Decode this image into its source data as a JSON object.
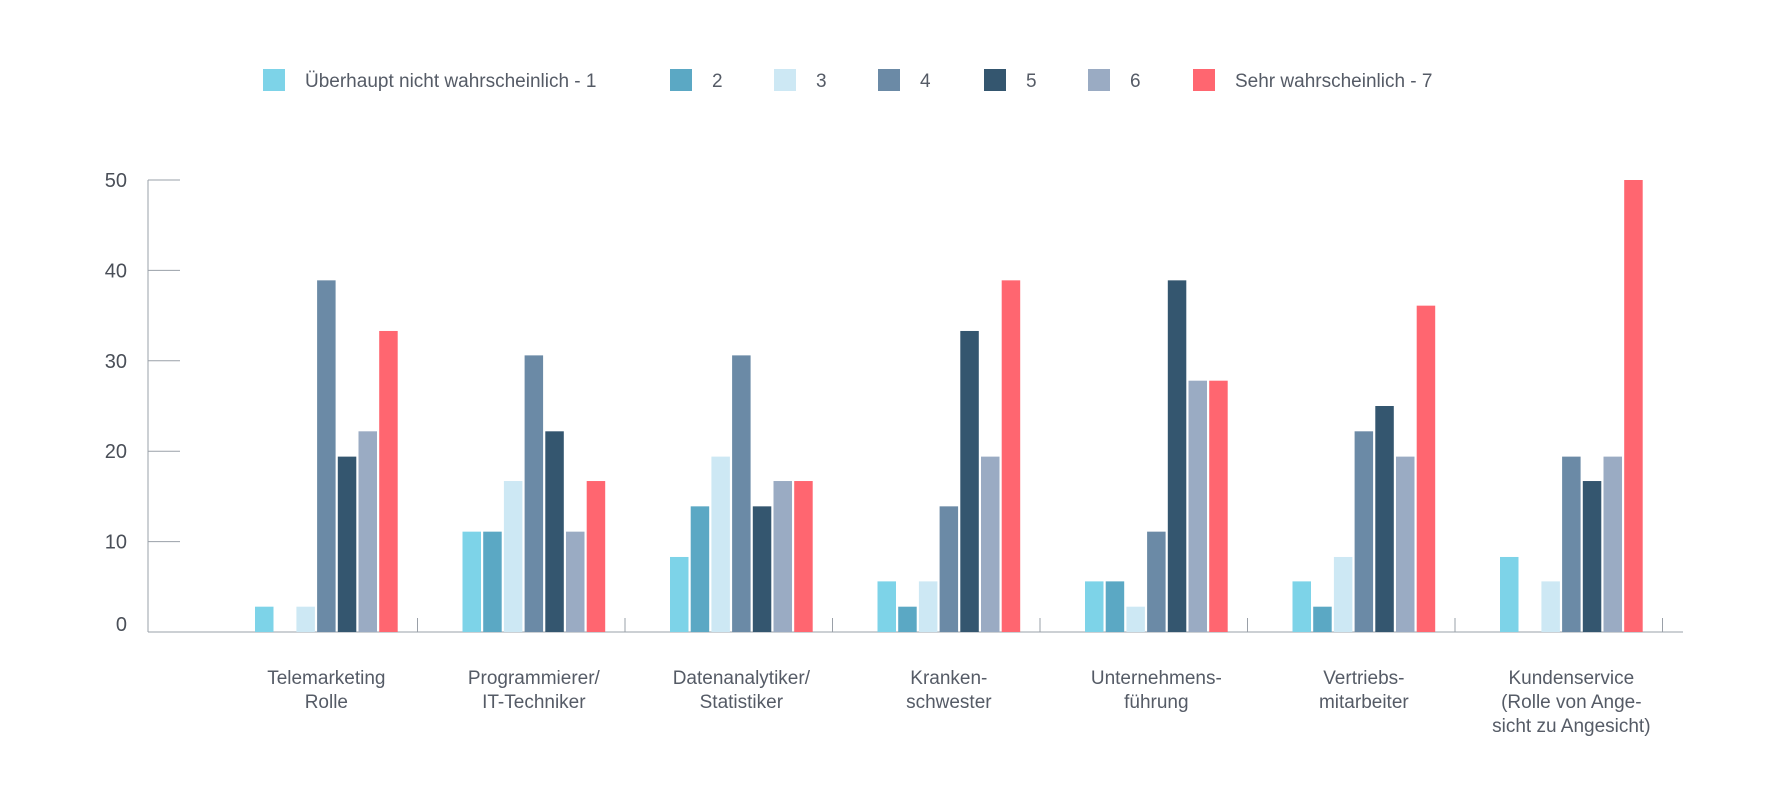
{
  "chart_data": {
    "type": "bar",
    "title": "",
    "xlabel": "",
    "ylabel": "",
    "ylim": [
      0,
      50
    ],
    "yticks": [
      0,
      10,
      20,
      30,
      40,
      50
    ],
    "grid": false,
    "legend_position": "top",
    "categories": [
      [
        "Telemarketing",
        "Rolle"
      ],
      [
        "Programmierer/",
        "IT-Techniker"
      ],
      [
        "Datenanalytiker/",
        "Statistiker"
      ],
      [
        "Kranken-",
        "schwester"
      ],
      [
        "Unternehmens-",
        "führung"
      ],
      [
        "Vertriebs-",
        "mitarbeiter"
      ],
      [
        "Kundenservice",
        "(Rolle von Ange-",
        "sicht zu Angesicht)"
      ]
    ],
    "series": [
      {
        "name": "Überhaupt nicht wahrscheinlich - 1",
        "color": "#7dd3e8",
        "values": [
          2.8,
          11.1,
          8.3,
          5.6,
          5.6,
          5.6,
          8.3
        ]
      },
      {
        "name": "2",
        "color": "#5ba8c4",
        "values": [
          0,
          11.1,
          13.9,
          2.8,
          5.6,
          2.8,
          0
        ]
      },
      {
        "name": "3",
        "color": "#cde8f4",
        "values": [
          2.8,
          16.7,
          19.4,
          5.6,
          2.8,
          8.3,
          5.6
        ]
      },
      {
        "name": "4",
        "color": "#6b8aa6",
        "values": [
          38.9,
          30.6,
          30.6,
          13.9,
          11.1,
          22.2,
          19.4
        ]
      },
      {
        "name": "5",
        "color": "#34566f",
        "values": [
          19.4,
          22.2,
          13.9,
          33.3,
          38.9,
          25.0,
          16.7
        ]
      },
      {
        "name": "6",
        "color": "#9aabc3",
        "values": [
          22.2,
          11.1,
          16.7,
          19.4,
          27.8,
          19.4,
          19.4
        ]
      },
      {
        "name": "Sehr wahrscheinlich - 7",
        "color": "#ff6670",
        "values": [
          33.3,
          16.7,
          16.7,
          38.9,
          27.8,
          36.1,
          50.0
        ]
      }
    ]
  }
}
